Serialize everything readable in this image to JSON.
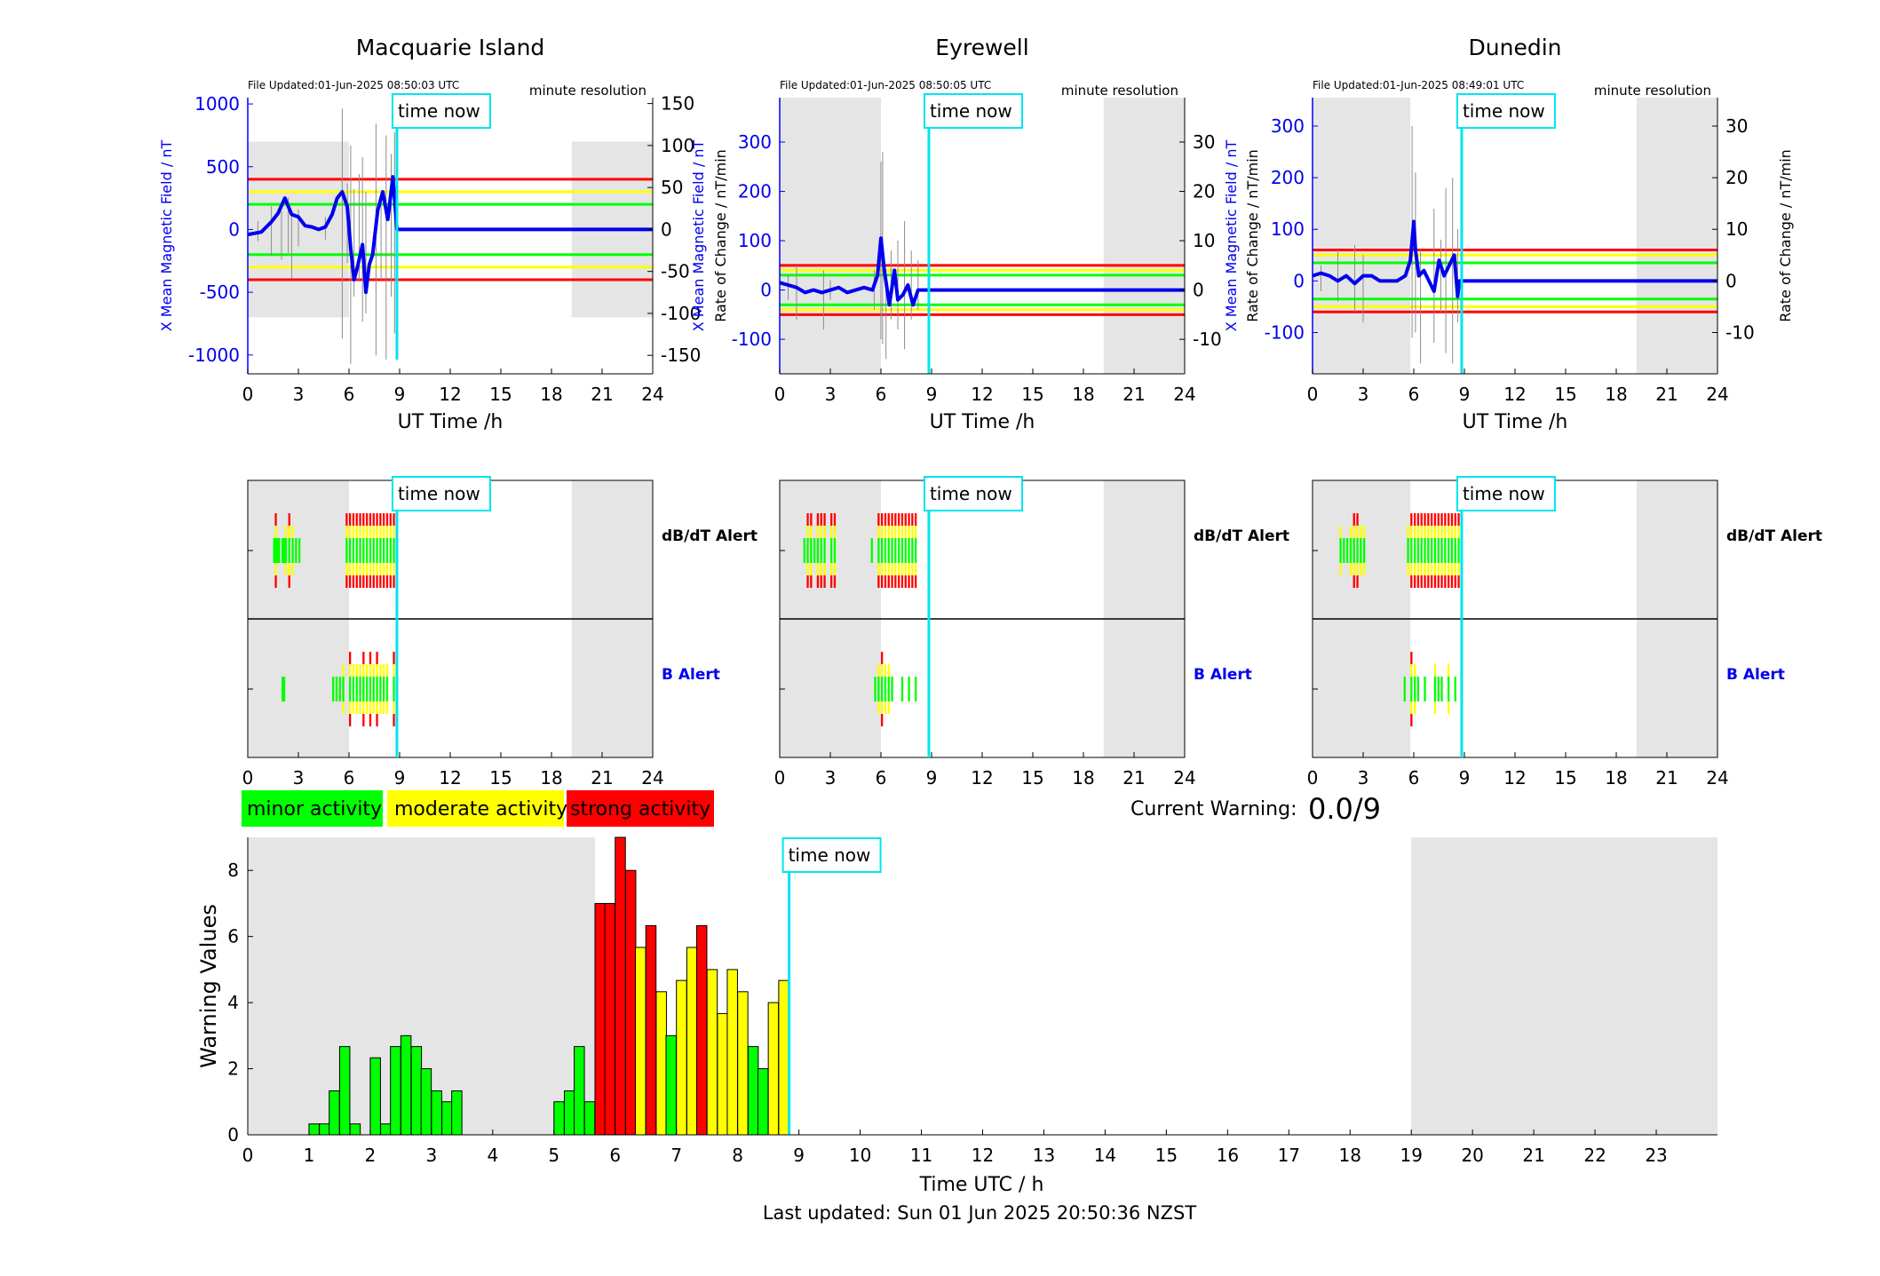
{
  "colors": {
    "minor": "#00ff00",
    "moderate": "#ffff00",
    "strong": "#ff0000",
    "field_line": "#0000ee",
    "rate_line": "#8c8c8c",
    "now_line": "#00e5ee",
    "night_shade": "#e5e5e5"
  },
  "time_now_label": "time now",
  "time_now_hour": 8.84,
  "xlabel_station": "UT Time /h",
  "x_ticks_station": [
    0,
    3,
    6,
    9,
    12,
    15,
    18,
    21,
    24
  ],
  "left_axis_label": "X Mean Magnetic Field / nT",
  "right_axis_label": "Rate of Change / nT/min",
  "file_prefix": "File Updated:",
  "resolution_label": "minute resolution",
  "dbdt_alert_label": "dB/dT Alert",
  "b_alert_label": "B Alert",
  "legend": {
    "minor": "minor activity",
    "moderate": "moderate activity",
    "strong": "strong activity"
  },
  "current_warning": {
    "label": "Current Warning:",
    "value": "0.0/9"
  },
  "stations": [
    {
      "name": "Macquarie Island",
      "file_updated": "01-Jun-2025 08:50:03 UTC",
      "night": [
        [
          0,
          6.0
        ],
        [
          19.2,
          24
        ]
      ],
      "left_ylim": [
        -1150,
        1050
      ],
      "left_ticks": [
        -1000,
        -500,
        0,
        500,
        1000
      ],
      "right_ylim": [
        -172,
        157
      ],
      "right_ticks": [
        -150,
        -100,
        -50,
        0,
        50,
        100,
        150
      ],
      "field_thresholds": {
        "minor": 200,
        "moderate": 300,
        "strong": 400
      },
      "field_series": [
        [
          0,
          -40
        ],
        [
          0.8,
          -20
        ],
        [
          1.4,
          60
        ],
        [
          1.8,
          130
        ],
        [
          2.2,
          250
        ],
        [
          2.6,
          120
        ],
        [
          3.0,
          100
        ],
        [
          3.4,
          30
        ],
        [
          3.8,
          20
        ],
        [
          4.2,
          0
        ],
        [
          4.6,
          20
        ],
        [
          5.0,
          120
        ],
        [
          5.3,
          250
        ],
        [
          5.6,
          300
        ],
        [
          5.9,
          180
        ],
        [
          6.1,
          -150
        ],
        [
          6.3,
          -400
        ],
        [
          6.5,
          -300
        ],
        [
          6.8,
          -120
        ],
        [
          7.0,
          -500
        ],
        [
          7.2,
          -280
        ],
        [
          7.4,
          -200
        ],
        [
          7.7,
          150
        ],
        [
          8.0,
          300
        ],
        [
          8.3,
          80
        ],
        [
          8.6,
          420
        ],
        [
          8.84,
          0
        ],
        [
          24,
          0
        ]
      ],
      "rate_spikes": [
        [
          0.6,
          10,
          -14
        ],
        [
          1.4,
          28,
          -32
        ],
        [
          2.0,
          22,
          -36
        ],
        [
          2.4,
          38,
          -28
        ],
        [
          2.6,
          20,
          -58
        ],
        [
          3.0,
          24,
          -20
        ],
        [
          4.6,
          15,
          -12
        ],
        [
          5.6,
          144,
          -130
        ],
        [
          5.9,
          55,
          -40
        ],
        [
          6.1,
          100,
          -160
        ],
        [
          6.3,
          48,
          -80
        ],
        [
          6.6,
          66,
          -60
        ],
        [
          6.8,
          86,
          -110
        ],
        [
          7.0,
          45,
          -100
        ],
        [
          7.6,
          126,
          -150
        ],
        [
          7.9,
          44,
          -60
        ],
        [
          8.2,
          112,
          -155
        ],
        [
          8.5,
          90,
          -80
        ],
        [
          8.7,
          116,
          -124
        ]
      ],
      "dbdt_alert": [
        [
          1.5,
          1
        ],
        [
          1.6,
          3
        ],
        [
          1.7,
          1
        ],
        [
          1.8,
          1
        ],
        [
          2.0,
          1
        ],
        [
          2.1,
          1
        ],
        [
          2.2,
          2
        ],
        [
          2.4,
          3
        ],
        [
          2.6,
          2
        ],
        [
          2.8,
          1
        ],
        [
          3.0,
          1
        ],
        [
          5.8,
          3
        ],
        [
          6.0,
          3
        ],
        [
          6.2,
          3
        ],
        [
          6.4,
          3
        ],
        [
          6.6,
          3
        ],
        [
          6.8,
          3
        ],
        [
          7.0,
          3
        ],
        [
          7.2,
          3
        ],
        [
          7.4,
          3
        ],
        [
          7.6,
          3
        ],
        [
          7.8,
          3
        ],
        [
          8.0,
          3
        ],
        [
          8.2,
          3
        ],
        [
          8.4,
          3
        ],
        [
          8.6,
          3
        ]
      ],
      "b_alert": [
        [
          2.0,
          1
        ],
        [
          2.1,
          1
        ],
        [
          5.0,
          1
        ],
        [
          5.2,
          1
        ],
        [
          5.4,
          1
        ],
        [
          5.6,
          2
        ],
        [
          6.0,
          3
        ],
        [
          6.2,
          2
        ],
        [
          6.4,
          2
        ],
        [
          6.6,
          2
        ],
        [
          6.8,
          3
        ],
        [
          7.0,
          2
        ],
        [
          7.2,
          3
        ],
        [
          7.4,
          2
        ],
        [
          7.6,
          3
        ],
        [
          7.8,
          2
        ],
        [
          8.0,
          2
        ],
        [
          8.2,
          2
        ],
        [
          8.6,
          3
        ]
      ]
    },
    {
      "name": "Eyrewell",
      "file_updated": "01-Jun-2025 08:50:05 UTC",
      "night": [
        [
          0,
          6.0
        ],
        [
          19.2,
          24
        ]
      ],
      "left_ylim": [
        -170,
        390
      ],
      "left_ticks": [
        -100,
        0,
        100,
        200,
        300
      ],
      "right_ylim": [
        -17,
        39
      ],
      "right_ticks": [
        -10,
        0,
        10,
        20,
        30
      ],
      "field_thresholds": {
        "minor": 30,
        "moderate": 40,
        "strong": 50
      },
      "field_series": [
        [
          0,
          15
        ],
        [
          0.5,
          10
        ],
        [
          1.0,
          5
        ],
        [
          1.5,
          -5
        ],
        [
          2.0,
          0
        ],
        [
          2.5,
          -5
        ],
        [
          3.0,
          0
        ],
        [
          3.5,
          5
        ],
        [
          4.0,
          -5
        ],
        [
          4.5,
          0
        ],
        [
          5.0,
          5
        ],
        [
          5.5,
          0
        ],
        [
          5.8,
          30
        ],
        [
          6.0,
          105
        ],
        [
          6.2,
          40
        ],
        [
          6.5,
          -30
        ],
        [
          6.8,
          40
        ],
        [
          7.0,
          -20
        ],
        [
          7.3,
          -10
        ],
        [
          7.6,
          10
        ],
        [
          7.9,
          -30
        ],
        [
          8.2,
          0
        ],
        [
          8.5,
          0
        ],
        [
          24,
          0
        ]
      ],
      "rate_spikes": [
        [
          0.5,
          3,
          -2
        ],
        [
          1.0,
          5,
          -6
        ],
        [
          2.6,
          4,
          -8
        ],
        [
          3.0,
          2,
          -2
        ],
        [
          5.6,
          4,
          -4
        ],
        [
          6.0,
          26,
          -10
        ],
        [
          6.1,
          28,
          -11
        ],
        [
          6.3,
          4,
          -14
        ],
        [
          6.6,
          8,
          -6
        ],
        [
          7.0,
          10,
          -8
        ],
        [
          7.4,
          14,
          -12
        ],
        [
          7.8,
          8,
          -6
        ],
        [
          8.2,
          6,
          -4
        ]
      ],
      "dbdt_alert": [
        [
          1.4,
          1
        ],
        [
          1.6,
          3
        ],
        [
          1.8,
          3
        ],
        [
          2.0,
          1
        ],
        [
          2.2,
          3
        ],
        [
          2.4,
          3
        ],
        [
          2.6,
          3
        ],
        [
          3.0,
          3
        ],
        [
          3.2,
          3
        ],
        [
          5.4,
          1
        ],
        [
          5.8,
          3
        ],
        [
          6.0,
          3
        ],
        [
          6.2,
          3
        ],
        [
          6.4,
          3
        ],
        [
          6.6,
          3
        ],
        [
          6.8,
          3
        ],
        [
          7.0,
          3
        ],
        [
          7.2,
          3
        ],
        [
          7.4,
          3
        ],
        [
          7.6,
          3
        ],
        [
          7.8,
          3
        ],
        [
          8.0,
          3
        ]
      ],
      "b_alert": [
        [
          5.6,
          1
        ],
        [
          5.8,
          2
        ],
        [
          6.0,
          3
        ],
        [
          6.2,
          2
        ],
        [
          6.4,
          2
        ],
        [
          6.6,
          1
        ],
        [
          7.2,
          1
        ],
        [
          7.6,
          1
        ],
        [
          8.0,
          1
        ]
      ]
    },
    {
      "name": "Dunedin",
      "file_updated": "01-Jun-2025 08:49:01 UTC",
      "night": [
        [
          0,
          5.8
        ],
        [
          19.2,
          24
        ]
      ],
      "left_ylim": [
        -180,
        355
      ],
      "left_ticks": [
        -100,
        0,
        100,
        200,
        300
      ],
      "right_ylim": [
        -18,
        35.5
      ],
      "right_ticks": [
        -10,
        0,
        10,
        20,
        30
      ],
      "field_thresholds": {
        "minor": 35,
        "moderate": 50,
        "strong": 60
      },
      "field_series": [
        [
          0,
          10
        ],
        [
          0.5,
          15
        ],
        [
          1.0,
          10
        ],
        [
          1.5,
          0
        ],
        [
          2.0,
          10
        ],
        [
          2.5,
          -5
        ],
        [
          3.0,
          10
        ],
        [
          3.5,
          10
        ],
        [
          4.0,
          0
        ],
        [
          4.5,
          0
        ],
        [
          5.0,
          0
        ],
        [
          5.5,
          10
        ],
        [
          5.8,
          40
        ],
        [
          6.0,
          115
        ],
        [
          6.1,
          60
        ],
        [
          6.3,
          10
        ],
        [
          6.6,
          20
        ],
        [
          6.9,
          0
        ],
        [
          7.2,
          -20
        ],
        [
          7.5,
          40
        ],
        [
          7.8,
          10
        ],
        [
          8.1,
          30
        ],
        [
          8.4,
          50
        ],
        [
          8.6,
          -30
        ],
        [
          8.7,
          0
        ],
        [
          24,
          0
        ]
      ],
      "rate_spikes": [
        [
          0.5,
          3,
          -2
        ],
        [
          1.5,
          6,
          -4
        ],
        [
          2.5,
          7,
          -6
        ],
        [
          3.0,
          5,
          -8
        ],
        [
          5.9,
          30,
          -11
        ],
        [
          6.1,
          21,
          -10
        ],
        [
          6.4,
          6,
          -16
        ],
        [
          7.2,
          14,
          -12
        ],
        [
          7.6,
          8,
          -6
        ],
        [
          7.9,
          18,
          -14
        ],
        [
          8.3,
          20,
          -16
        ],
        [
          8.6,
          10,
          -8
        ]
      ],
      "dbdt_alert": [
        [
          1.6,
          2
        ],
        [
          1.8,
          1
        ],
        [
          2.0,
          1
        ],
        [
          2.2,
          2
        ],
        [
          2.4,
          3
        ],
        [
          2.6,
          3
        ],
        [
          2.8,
          2
        ],
        [
          3.0,
          2
        ],
        [
          5.6,
          2
        ],
        [
          5.8,
          3
        ],
        [
          6.0,
          3
        ],
        [
          6.2,
          3
        ],
        [
          6.4,
          3
        ],
        [
          6.6,
          3
        ],
        [
          6.8,
          3
        ],
        [
          7.0,
          3
        ],
        [
          7.2,
          3
        ],
        [
          7.4,
          3
        ],
        [
          7.6,
          3
        ],
        [
          7.8,
          3
        ],
        [
          8.0,
          3
        ],
        [
          8.2,
          3
        ],
        [
          8.4,
          3
        ],
        [
          8.6,
          3
        ]
      ],
      "b_alert": [
        [
          5.4,
          1
        ],
        [
          5.8,
          3
        ],
        [
          6.0,
          2
        ],
        [
          6.2,
          1
        ],
        [
          6.6,
          1
        ],
        [
          7.2,
          2
        ],
        [
          7.4,
          1
        ],
        [
          7.6,
          1
        ],
        [
          8.0,
          2
        ],
        [
          8.4,
          1
        ]
      ]
    }
  ],
  "warning_chart": {
    "ylabel": "Warning Values",
    "xlabel": "Time UTC / h",
    "ylim": [
      0,
      9
    ],
    "y_ticks": [
      0,
      2,
      4,
      6,
      8
    ],
    "x_ticks": [
      0,
      1,
      2,
      3,
      4,
      5,
      6,
      7,
      8,
      9,
      10,
      11,
      12,
      13,
      14,
      15,
      16,
      17,
      18,
      19,
      20,
      21,
      22,
      23
    ],
    "xlim": [
      0,
      24
    ],
    "night": [
      [
        0,
        5.67
      ],
      [
        19,
        24
      ]
    ],
    "bin_width_h": 0.1667,
    "bars": [
      {
        "x": 1.0,
        "v": 0.33,
        "level": "minor"
      },
      {
        "x": 1.17,
        "v": 0.33,
        "level": "minor"
      },
      {
        "x": 1.33,
        "v": 1.33,
        "level": "minor"
      },
      {
        "x": 1.5,
        "v": 2.67,
        "level": "minor"
      },
      {
        "x": 1.67,
        "v": 0.33,
        "level": "minor"
      },
      {
        "x": 2.0,
        "v": 2.33,
        "level": "minor"
      },
      {
        "x": 2.17,
        "v": 0.33,
        "level": "minor"
      },
      {
        "x": 2.33,
        "v": 2.67,
        "level": "minor"
      },
      {
        "x": 2.5,
        "v": 3.0,
        "level": "minor"
      },
      {
        "x": 2.67,
        "v": 2.67,
        "level": "minor"
      },
      {
        "x": 2.83,
        "v": 2.0,
        "level": "minor"
      },
      {
        "x": 3.0,
        "v": 1.33,
        "level": "minor"
      },
      {
        "x": 3.17,
        "v": 1.0,
        "level": "minor"
      },
      {
        "x": 3.33,
        "v": 1.33,
        "level": "minor"
      },
      {
        "x": 5.0,
        "v": 1.0,
        "level": "minor"
      },
      {
        "x": 5.17,
        "v": 1.33,
        "level": "minor"
      },
      {
        "x": 5.33,
        "v": 2.67,
        "level": "minor"
      },
      {
        "x": 5.5,
        "v": 1.0,
        "level": "minor"
      },
      {
        "x": 5.67,
        "v": 7.0,
        "level": "strong"
      },
      {
        "x": 5.83,
        "v": 7.0,
        "level": "strong"
      },
      {
        "x": 6.0,
        "v": 9.0,
        "level": "strong"
      },
      {
        "x": 6.17,
        "v": 8.0,
        "level": "strong"
      },
      {
        "x": 6.33,
        "v": 5.67,
        "level": "moderate"
      },
      {
        "x": 6.5,
        "v": 6.33,
        "level": "strong"
      },
      {
        "x": 6.67,
        "v": 4.33,
        "level": "moderate"
      },
      {
        "x": 6.83,
        "v": 3.0,
        "level": "minor"
      },
      {
        "x": 7.0,
        "v": 4.67,
        "level": "moderate"
      },
      {
        "x": 7.17,
        "v": 5.67,
        "level": "moderate"
      },
      {
        "x": 7.33,
        "v": 6.33,
        "level": "strong"
      },
      {
        "x": 7.5,
        "v": 5.0,
        "level": "moderate"
      },
      {
        "x": 7.67,
        "v": 3.67,
        "level": "moderate"
      },
      {
        "x": 7.83,
        "v": 5.0,
        "level": "moderate"
      },
      {
        "x": 8.0,
        "v": 4.33,
        "level": "moderate"
      },
      {
        "x": 8.17,
        "v": 2.67,
        "level": "minor"
      },
      {
        "x": 8.33,
        "v": 2.0,
        "level": "minor"
      },
      {
        "x": 8.5,
        "v": 4.0,
        "level": "moderate"
      },
      {
        "x": 8.67,
        "v": 4.67,
        "level": "moderate"
      }
    ]
  },
  "last_updated": "Last updated: Sun 01 Jun 2025 20:50:36 NZST"
}
